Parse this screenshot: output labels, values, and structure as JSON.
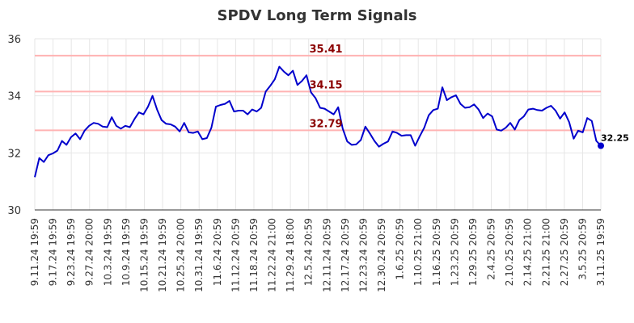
{
  "chart_data": {
    "type": "line",
    "title": "SPDV Long Term Signals",
    "xlabel": "",
    "ylabel": "",
    "ylim": [
      30,
      36
    ],
    "yticks": [
      30,
      32,
      34,
      36
    ],
    "grid": true,
    "colors": {
      "line": "#0000cc",
      "reference": "#ffb3b3",
      "reference_label": "#8b0000",
      "grid": "#e6e6e6"
    },
    "xtick_labels": [
      "9.11.24 19:59",
      "9.17.24 19:59",
      "9.23.24 19:59",
      "9.27.24 20:00",
      "10.3.24 19:59",
      "10.9.24 19:59",
      "10.15.24 19:59",
      "10.21.24 19:59",
      "10.25.24 20:00",
      "10.31.24 19:59",
      "11.6.24 20:59",
      "11.12.24 20:59",
      "11.18.24 20:59",
      "11.22.24 21:00",
      "11.29.24 18:00",
      "12.5.24 20:59",
      "12.11.24 20:59",
      "12.17.24 20:59",
      "12.23.24 20:59",
      "12.30.24 20:59",
      "1.6.25 20:59",
      "1.10.25 21:00",
      "1.16.25 20:59",
      "1.23.25 20:59",
      "1.29.25 20:59",
      "2.4.25 20:59",
      "2.10.25 20:59",
      "2.14.25 21:00",
      "2.21.25 21:00",
      "2.27.25 20:59",
      "3.5.25 20:59",
      "3.11.25 19:59"
    ],
    "reference_lines": [
      {
        "value": 35.41,
        "label": "35.41"
      },
      {
        "value": 34.15,
        "label": "34.15"
      },
      {
        "value": 32.79,
        "label": "32.79"
      }
    ],
    "series": [
      {
        "values": [
          31.15,
          31.82,
          31.68,
          31.92,
          31.98,
          32.08,
          32.42,
          32.28,
          32.55,
          32.68,
          32.48,
          32.78,
          32.95,
          33.05,
          33.02,
          32.92,
          32.9,
          33.25,
          32.95,
          32.85,
          32.95,
          32.9,
          33.18,
          33.42,
          33.35,
          33.62,
          34.0,
          33.52,
          33.15,
          33.02,
          33.0,
          32.92,
          32.75,
          33.05,
          32.72,
          32.7,
          32.75,
          32.48,
          32.52,
          32.88,
          33.62,
          33.68,
          33.72,
          33.82,
          33.45,
          33.48,
          33.48,
          33.35,
          33.52,
          33.45,
          33.58,
          34.15,
          34.35,
          34.58,
          35.02,
          34.85,
          34.72,
          34.88,
          34.38,
          34.52,
          34.72,
          34.12,
          33.92,
          33.58,
          33.55,
          33.45,
          33.35,
          33.6,
          32.85,
          32.4,
          32.28,
          32.3,
          32.45,
          32.92,
          32.68,
          32.42,
          32.22,
          32.32,
          32.4,
          32.75,
          32.7,
          32.6,
          32.62,
          32.62,
          32.25,
          32.58,
          32.88,
          33.32,
          33.5,
          33.55,
          34.3,
          33.85,
          33.95,
          34.02,
          33.72,
          33.58,
          33.6,
          33.7,
          33.52,
          33.22,
          33.38,
          33.28,
          32.82,
          32.78,
          32.88,
          33.05,
          32.82,
          33.15,
          33.28,
          33.52,
          33.55,
          33.5,
          33.48,
          33.58,
          33.65,
          33.48,
          33.2,
          33.42,
          33.08,
          32.5,
          32.78,
          32.72,
          33.22,
          33.12,
          32.42,
          32.25
        ]
      }
    ],
    "last_label": "32.25"
  }
}
